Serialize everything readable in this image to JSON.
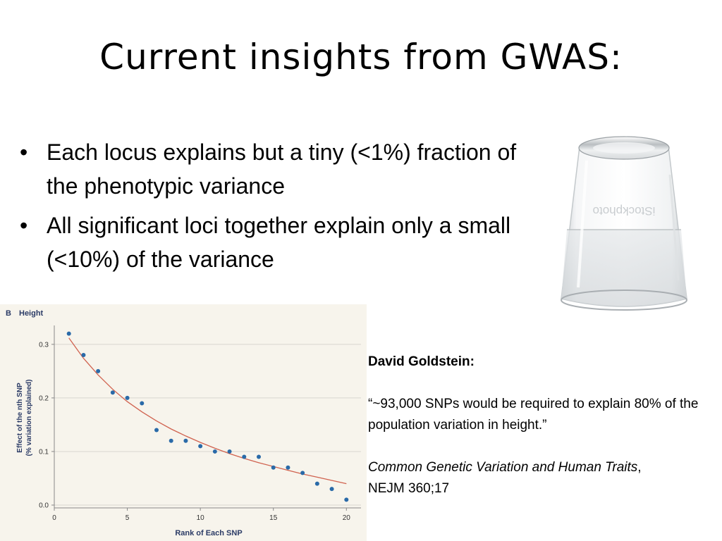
{
  "slide": {
    "title": "Current insights from GWAS:",
    "bullets": [
      "Each locus explains but a tiny (<1%) fraction of the phenotypic variance",
      "All significant loci together explain only a small (<10%) of the variance"
    ],
    "bullet_glyph": "•",
    "glass_watermark": "iStockphoto"
  },
  "quote": {
    "author": "David Goldstein:",
    "text": "“~93,000 SNPs would be required to explain 80% of the population variation in height.”",
    "ref_title": "Common Genetic Variation and Human Traits",
    "ref_sep": ",",
    "ref_journal": "NEJM 360;17"
  },
  "chart_data": {
    "type": "scatter",
    "panel_label": "B",
    "title": "Height",
    "xlabel": "Rank of Each SNP",
    "ylabel_line1": "Effect of the nth SNP",
    "ylabel_line2": "(% variation explained)",
    "xlim": [
      0,
      21
    ],
    "ylim": [
      0,
      0.33
    ],
    "xticks": [
      0,
      5,
      10,
      15,
      20
    ],
    "xtick_labels": [
      "0",
      "5",
      "10",
      "15",
      "20"
    ],
    "yticks": [
      0.0,
      0.1,
      0.2,
      0.3
    ],
    "ytick_labels": [
      "0.0",
      "0.1",
      "0.2",
      "0.3"
    ],
    "grid": "horizontal",
    "series": [
      {
        "kind": "points",
        "color": "#2a6aa8",
        "x": [
          1,
          2,
          3,
          4,
          5,
          6,
          7,
          8,
          9,
          10,
          11,
          12,
          13,
          14,
          15,
          16,
          17,
          18,
          19,
          20
        ],
        "y": [
          0.32,
          0.28,
          0.25,
          0.21,
          0.2,
          0.19,
          0.14,
          0.12,
          0.12,
          0.11,
          0.1,
          0.1,
          0.09,
          0.09,
          0.07,
          0.07,
          0.06,
          0.04,
          0.03,
          0.01
        ]
      },
      {
        "kind": "fit",
        "color": "#d0624f",
        "x": [
          1,
          2,
          3,
          4,
          5,
          6,
          7,
          8,
          9,
          10,
          11,
          12,
          13,
          14,
          15,
          16,
          17,
          18,
          19,
          20
        ],
        "y": [
          0.312,
          0.274,
          0.243,
          0.216,
          0.193,
          0.174,
          0.157,
          0.142,
          0.129,
          0.117,
          0.106,
          0.096,
          0.087,
          0.079,
          0.072,
          0.065,
          0.058,
          0.052,
          0.046,
          0.04
        ]
      }
    ]
  }
}
